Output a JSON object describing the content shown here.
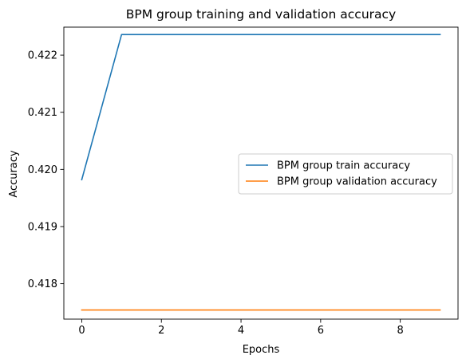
{
  "chart_data": {
    "type": "line",
    "title": "BPM group training and validation accuracy",
    "xlabel": "Epochs",
    "ylabel": "Accuracy",
    "x": [
      0,
      1,
      2,
      3,
      4,
      5,
      6,
      7,
      8,
      9
    ],
    "xlim": [
      -0.45,
      9.45
    ],
    "ylim": [
      0.41738,
      0.42249
    ],
    "xticks": [
      0,
      2,
      4,
      6,
      8
    ],
    "yticks": [
      0.418,
      0.419,
      0.42,
      0.421,
      0.422
    ],
    "ytick_labels": [
      "0.418",
      "0.419",
      "0.420",
      "0.421",
      "0.422"
    ],
    "grid": false,
    "legend_position": "center-right",
    "series": [
      {
        "name": "BPM group train accuracy",
        "color": "#1f77b4",
        "values": [
          0.41982,
          0.42236,
          0.42236,
          0.42236,
          0.42236,
          0.42236,
          0.42236,
          0.42236,
          0.42236,
          0.42236
        ]
      },
      {
        "name": "BPM group validation accuracy",
        "color": "#ff7f0e",
        "values": [
          0.41754,
          0.41754,
          0.41754,
          0.41754,
          0.41754,
          0.41754,
          0.41754,
          0.41754,
          0.41754,
          0.41754
        ]
      }
    ]
  }
}
